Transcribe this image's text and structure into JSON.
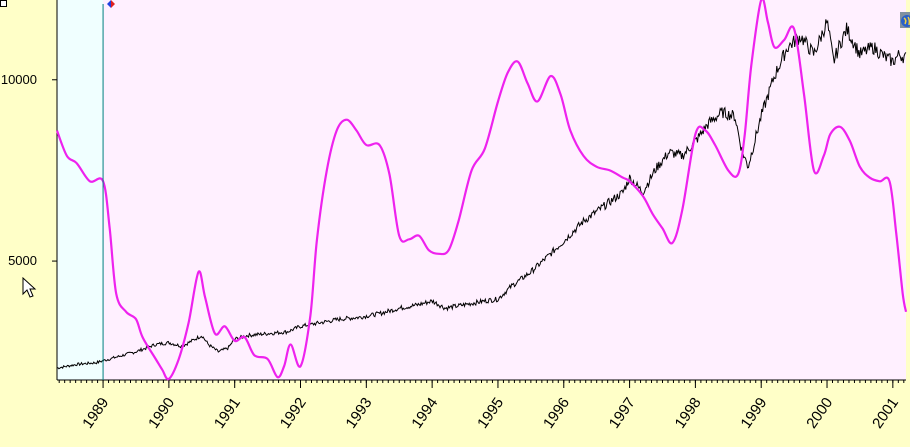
{
  "colors": {
    "page_bg": "#ffffc8",
    "plot_bg": "#fff0ff",
    "selection_bg": "#f0ffff",
    "price_line": "#000000",
    "indicator_line": "#ee22ee",
    "marker_line": "#008080"
  },
  "icons": [
    "mouse-pointer-icon",
    "globe-icon",
    "diamond-marker-icon"
  ],
  "chart_data": {
    "type": "line",
    "title": "",
    "xlabel": "",
    "ylabel": "",
    "x_range": [
      1988.3,
      2001.2
    ],
    "ylim": [
      1720,
      12200
    ],
    "y_ticks": [
      {
        "value": 10000,
        "label": "10000"
      },
      {
        "value": 5000,
        "label": "5000"
      }
    ],
    "x_ticks": [
      {
        "value": 1989.0,
        "label": "1989"
      },
      {
        "value": 1990.0,
        "label": "1990"
      },
      {
        "value": 1991.0,
        "label": "1991"
      },
      {
        "value": 1992.0,
        "label": "1992"
      },
      {
        "value": 1993.0,
        "label": "1993"
      },
      {
        "value": 1994.0,
        "label": "1994"
      },
      {
        "value": 1995.0,
        "label": "1995"
      },
      {
        "value": 1996.0,
        "label": "1996"
      },
      {
        "value": 1997.0,
        "label": "1997"
      },
      {
        "value": 1998.0,
        "label": "1998"
      },
      {
        "value": 1999.0,
        "label": "1999"
      },
      {
        "value": 2000.0,
        "label": "2000"
      },
      {
        "value": 2001.0,
        "label": "2001"
      }
    ],
    "selection_range": [
      1988.3,
      1989.0
    ],
    "marker_x": 1989.0,
    "series": [
      {
        "role": "price",
        "color": "#000000",
        "x": [
          1988.3,
          1988.6,
          1988.9,
          1989.2,
          1989.5,
          1989.8,
          1990.0,
          1990.2,
          1990.4,
          1990.5,
          1990.6,
          1990.75,
          1990.9,
          1991.0,
          1991.2,
          1991.5,
          1991.8,
          1992.0,
          1992.3,
          1992.6,
          1992.9,
          1993.2,
          1993.5,
          1993.8,
          1994.0,
          1994.2,
          1994.5,
          1994.8,
          1995.0,
          1995.2,
          1995.5,
          1995.8,
          1996.0,
          1996.3,
          1996.6,
          1996.9,
          1997.0,
          1997.2,
          1997.4,
          1997.6,
          1997.8,
          1998.0,
          1998.2,
          1998.4,
          1998.6,
          1998.7,
          1998.8,
          1999.0,
          1999.2,
          1999.4,
          1999.6,
          1999.8,
          2000.0,
          2000.1,
          2000.2,
          2000.3,
          2000.5,
          2000.7,
          2000.9,
          2001.0,
          2001.1,
          2001.2
        ],
        "y": [
          2050,
          2150,
          2200,
          2350,
          2500,
          2700,
          2750,
          2650,
          2850,
          2950,
          2700,
          2500,
          2600,
          2850,
          2950,
          3000,
          3050,
          3200,
          3300,
          3400,
          3450,
          3550,
          3700,
          3800,
          3900,
          3700,
          3800,
          3900,
          3950,
          4300,
          4700,
          5200,
          5550,
          6100,
          6500,
          6900,
          7300,
          6900,
          7550,
          8000,
          7900,
          8300,
          8800,
          9100,
          9000,
          8100,
          7600,
          9000,
          10100,
          10900,
          11200,
          10700,
          11600,
          10500,
          11000,
          11400,
          10700,
          10900,
          10600,
          10500,
          10700,
          10600
        ]
      },
      {
        "role": "indicator",
        "color": "#ee22ee",
        "x": [
          1988.3,
          1988.45,
          1988.6,
          1988.8,
          1989.0,
          1989.1,
          1989.2,
          1989.35,
          1989.5,
          1989.6,
          1989.8,
          1989.9,
          1990.0,
          1990.15,
          1990.3,
          1990.45,
          1990.55,
          1990.7,
          1990.85,
          1991.0,
          1991.15,
          1991.3,
          1991.5,
          1991.65,
          1991.75,
          1991.85,
          1992.0,
          1992.15,
          1992.25,
          1992.4,
          1992.55,
          1992.7,
          1992.85,
          1993.0,
          1993.2,
          1993.35,
          1993.5,
          1993.65,
          1993.8,
          1993.95,
          1994.1,
          1994.25,
          1994.4,
          1994.6,
          1994.8,
          1995.0,
          1995.15,
          1995.3,
          1995.45,
          1995.6,
          1995.8,
          1995.95,
          1996.1,
          1996.3,
          1996.5,
          1996.7,
          1996.9,
          1997.0,
          1997.2,
          1997.35,
          1997.5,
          1997.65,
          1997.8,
          1998.0,
          1998.15,
          1998.3,
          1998.5,
          1998.65,
          1998.75,
          1998.85,
          1999.0,
          1999.1,
          1999.2,
          1999.35,
          1999.5,
          1999.65,
          1999.8,
          1999.95,
          2000.05,
          2000.2,
          2000.35,
          2000.5,
          2000.65,
          2000.8,
          2000.95,
          2001.05,
          2001.15,
          2001.2
        ],
        "y": [
          8600,
          7900,
          7700,
          7200,
          7200,
          5900,
          4100,
          3600,
          3400,
          2900,
          2300,
          2000,
          1750,
          2300,
          3300,
          4700,
          4000,
          3000,
          3200,
          2800,
          2900,
          2400,
          2300,
          1800,
          2100,
          2700,
          2100,
          3500,
          5600,
          7500,
          8600,
          8900,
          8600,
          8200,
          8200,
          7400,
          5700,
          5600,
          5700,
          5300,
          5200,
          5300,
          6100,
          7500,
          8100,
          9400,
          10200,
          10500,
          9900,
          9400,
          10100,
          9600,
          8600,
          7900,
          7600,
          7500,
          7300,
          7200,
          6800,
          6300,
          5900,
          5500,
          6400,
          8500,
          8600,
          8200,
          7500,
          7400,
          8500,
          10400,
          12200,
          11600,
          10900,
          11100,
          11400,
          9600,
          7500,
          7900,
          8500,
          8700,
          8300,
          7600,
          7300,
          7200,
          7200,
          5800,
          4100,
          3600
        ]
      }
    ]
  }
}
